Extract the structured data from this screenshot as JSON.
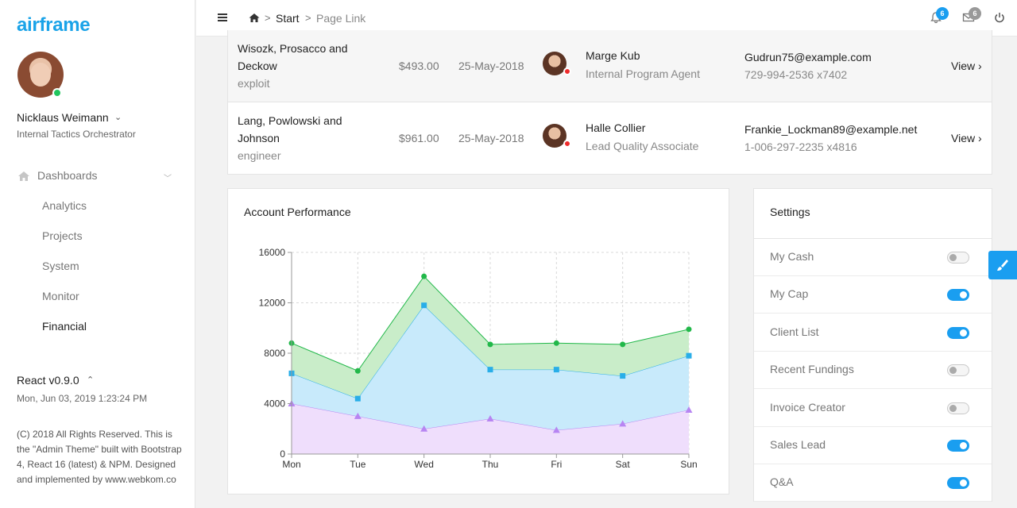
{
  "app": {
    "brand": "airframe"
  },
  "user": {
    "name": "Nicklaus Weimann",
    "role": "Internal Tactics Orchestrator"
  },
  "nav": {
    "section": "Dashboards",
    "items": [
      "Analytics",
      "Projects",
      "System",
      "Monitor",
      "Financial"
    ],
    "active": "Financial"
  },
  "footer": {
    "version": "React v0.9.0",
    "datetime": "Mon, Jun 03, 2019 1:23:24 PM",
    "copyright": "(C) 2018 All Rights Reserved. This is the \"Admin Theme\" built with Bootstrap 4, React 16 (latest) & NPM. Designed and implemented by www.webkom.co"
  },
  "topbar": {
    "breadcrumb": {
      "sep": ">",
      "start": "Start",
      "page": "Page Link"
    },
    "notifications_count": "6",
    "messages_count": "6",
    "colors": {
      "notif_badge": "#1a9ef0",
      "msg_badge": "#999999"
    }
  },
  "table": {
    "rows": [
      {
        "company": "Wisozk, Prosacco and Deckow",
        "role": "exploit",
        "amount": "$493.00",
        "date": "25-May-2018",
        "name": "Marge Kub",
        "title": "Internal Program Agent",
        "email": "Gudrun75@example.com",
        "phone": "729-994-2536 x7402",
        "action": "View ›"
      },
      {
        "company": "Lang, Powlowski and Johnson",
        "role": "engineer",
        "amount": "$961.00",
        "date": "25-May-2018",
        "name": "Halle Collier",
        "title": "Lead Quality Associate",
        "email": "Frankie_Lockman89@example.net",
        "phone": "1-006-297-2235 x4816",
        "action": "View ›"
      }
    ]
  },
  "chart": {
    "title": "Account Performance"
  },
  "chart_data": {
    "type": "area",
    "title": "Account Performance",
    "categories": [
      "Mon",
      "Tue",
      "Wed",
      "Thu",
      "Fri",
      "Sat",
      "Sun"
    ],
    "ylim": [
      0,
      16000
    ],
    "yticks": [
      0,
      4000,
      8000,
      12000,
      16000
    ],
    "grid": true,
    "stacked": true,
    "series": [
      {
        "values": [
          4000,
          3000,
          2000,
          2800,
          1900,
          2400,
          3500
        ],
        "color": "#b785f2",
        "fill": "#efdefc",
        "marker": "triangle"
      },
      {
        "values": [
          2400,
          1400,
          9800,
          3900,
          4800,
          3800,
          4300
        ],
        "color": "#29aee8",
        "fill": "#c8eafb",
        "marker": "square"
      },
      {
        "values": [
          2400,
          2200,
          2300,
          2000,
          2100,
          2500,
          2100
        ],
        "color": "#22b84a",
        "fill": "#c9edc9",
        "marker": "circle"
      }
    ]
  },
  "settings": {
    "title": "Settings",
    "items": [
      {
        "label": "My Cash",
        "on": false
      },
      {
        "label": "My Cap",
        "on": true
      },
      {
        "label": "Client List",
        "on": true
      },
      {
        "label": "Recent Fundings",
        "on": false
      },
      {
        "label": "Invoice Creator",
        "on": false
      },
      {
        "label": "Sales Lead",
        "on": true
      },
      {
        "label": "Q&A",
        "on": true
      }
    ]
  },
  "icons": [
    "home-icon",
    "hamburger-icon",
    "bell-icon",
    "envelope-icon",
    "power-icon",
    "chevron-down-icon",
    "chevron-up-icon",
    "paintbrush-icon"
  ]
}
